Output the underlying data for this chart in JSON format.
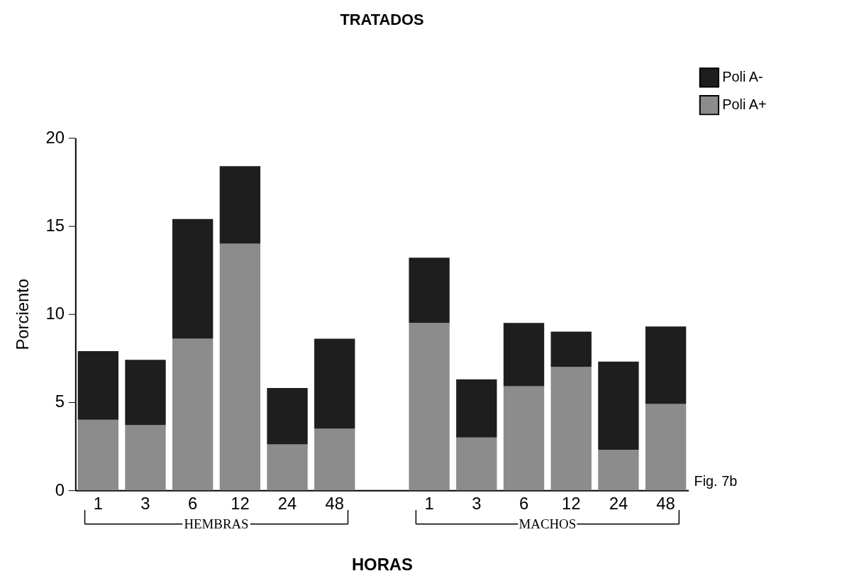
{
  "chart_data": {
    "type": "bar",
    "title": "TRATADOS",
    "xlabel": "HORAS",
    "ylabel": "Porciento",
    "categories": [
      "1",
      "3",
      "6",
      "12",
      "24",
      "48",
      null,
      "1",
      "3",
      "6",
      "12",
      "24",
      "48"
    ],
    "stacked": true,
    "ylim": [
      0,
      20
    ],
    "yticks": [
      0,
      5,
      10,
      15,
      20
    ],
    "grid": false,
    "legend": "top right",
    "series": [
      {
        "name": "Poli A+",
        "color": "#8c8c8c",
        "values": [
          4.0,
          3.7,
          8.6,
          14.0,
          2.6,
          3.5,
          null,
          9.5,
          3.0,
          5.9,
          7.0,
          2.3,
          4.9
        ]
      },
      {
        "name": "Poli A-",
        "color": "#1e1e1e",
        "values": [
          3.9,
          3.7,
          6.8,
          4.4,
          3.2,
          5.1,
          null,
          3.7,
          3.3,
          3.6,
          2.0,
          5.0,
          4.4
        ]
      }
    ],
    "annotations": [
      "HEMBRAS",
      "MACHOS",
      "Fig. 7b"
    ]
  }
}
